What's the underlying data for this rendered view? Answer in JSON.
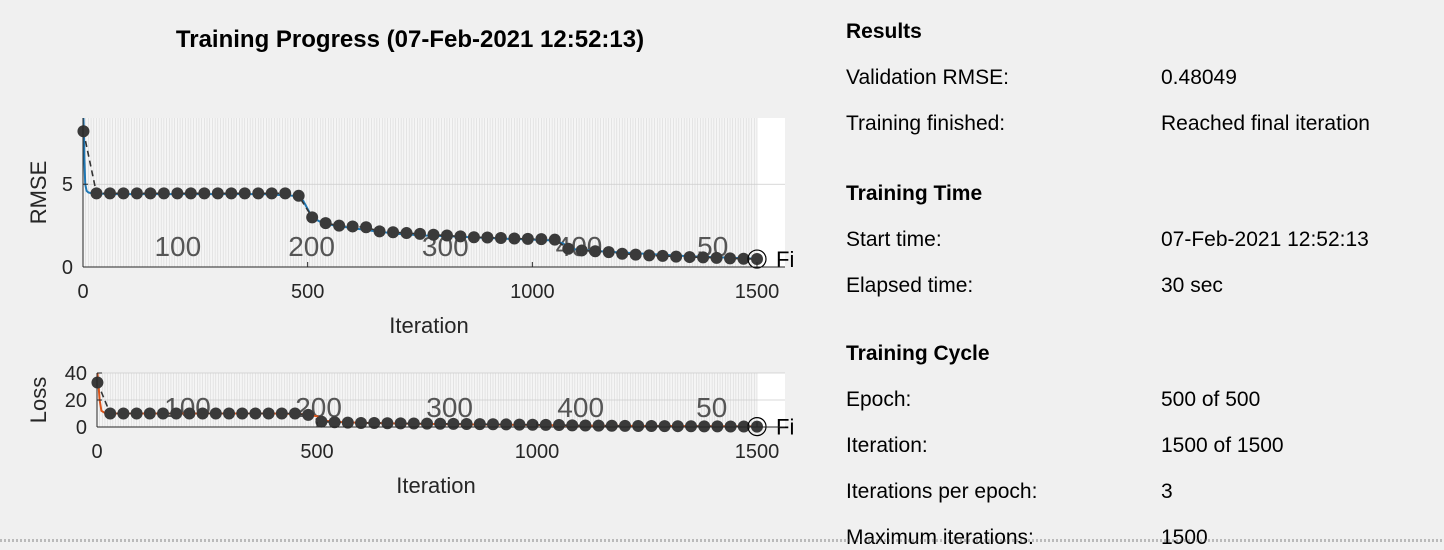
{
  "title": "Training Progress (07-Feb-2021 12:52:13)",
  "results": {
    "heading": "Results",
    "validation_rmse_label": "Validation RMSE:",
    "validation_rmse_value": "0.48049",
    "training_finished_label": "Training finished:",
    "training_finished_value": "Reached final iteration"
  },
  "training_time": {
    "heading": "Training Time",
    "start_label": "Start time:",
    "start_value": "07-Feb-2021 12:52:13",
    "elapsed_label": "Elapsed time:",
    "elapsed_value": "30 sec"
  },
  "training_cycle": {
    "heading": "Training Cycle",
    "epoch_label": "Epoch:",
    "epoch_value": "500 of 500",
    "iteration_label": "Iteration:",
    "iteration_value": "1500 of 1500",
    "ipe_label": "Iterations per epoch:",
    "ipe_value": "3",
    "maxiter_label": "Maximum iterations:",
    "maxiter_value": "1500"
  },
  "chart_data": [
    {
      "type": "line",
      "ylabel": "RMSE",
      "xlabel": "Iteration",
      "xlim": [
        0,
        1500
      ],
      "ylim": [
        0,
        9
      ],
      "xticks": [
        0,
        500,
        1000,
        1500
      ],
      "yticks": [
        0,
        5
      ],
      "epoch_labels": [
        "100",
        "200",
        "300",
        "400",
        "50"
      ],
      "final_marker_label": "Fi",
      "series": [
        {
          "color": "#1f77b4",
          "x": [
            1,
            2,
            3,
            5,
            8,
            12,
            20,
            30,
            60,
            120,
            200,
            300,
            400,
            470,
            490,
            510,
            530,
            560,
            600,
            640,
            700,
            760,
            820,
            900,
            1000,
            1050,
            1070,
            1080,
            1150,
            1250,
            1350,
            1450,
            1500
          ],
          "y": [
            9.0,
            8.2,
            6.5,
            5.0,
            4.6,
            4.5,
            4.45,
            4.45,
            4.4,
            4.4,
            4.4,
            4.4,
            4.4,
            4.3,
            4.0,
            3.0,
            2.7,
            2.5,
            2.35,
            2.2,
            2.0,
            1.9,
            1.85,
            1.75,
            1.65,
            1.6,
            1.4,
            1.1,
            0.95,
            0.8,
            0.65,
            0.55,
            0.5
          ]
        }
      ],
      "validation_points": {
        "x": [
          1,
          30,
          60,
          90,
          120,
          150,
          180,
          210,
          240,
          270,
          300,
          330,
          360,
          390,
          420,
          450,
          480,
          510,
          540,
          570,
          600,
          630,
          660,
          690,
          720,
          750,
          780,
          810,
          840,
          870,
          900,
          930,
          960,
          990,
          1020,
          1050,
          1080,
          1110,
          1140,
          1170,
          1200,
          1230,
          1260,
          1290,
          1320,
          1350,
          1380,
          1410,
          1440,
          1470,
          1500
        ],
        "y": [
          8.2,
          4.45,
          4.45,
          4.45,
          4.45,
          4.45,
          4.45,
          4.45,
          4.45,
          4.45,
          4.45,
          4.45,
          4.45,
          4.45,
          4.45,
          4.45,
          4.3,
          3.0,
          2.65,
          2.5,
          2.45,
          2.4,
          2.15,
          2.1,
          2.05,
          2.0,
          1.95,
          1.9,
          1.85,
          1.8,
          1.78,
          1.75,
          1.72,
          1.7,
          1.68,
          1.65,
          1.1,
          1.0,
          0.95,
          0.9,
          0.8,
          0.75,
          0.7,
          0.67,
          0.63,
          0.6,
          0.58,
          0.55,
          0.52,
          0.5,
          0.48
        ]
      },
      "final_value": 0.48
    },
    {
      "type": "line",
      "ylabel": "Loss",
      "xlabel": "Iteration",
      "xlim": [
        0,
        1500
      ],
      "ylim": [
        0,
        40
      ],
      "xticks": [
        0,
        500,
        1000,
        1500
      ],
      "yticks": [
        0,
        20,
        40
      ],
      "epoch_labels": [
        "100",
        "200",
        "300",
        "400",
        "50"
      ],
      "final_marker_label": "Fi",
      "series": [
        {
          "color": "#d95319",
          "x": [
            1,
            3,
            6,
            10,
            20,
            40,
            100,
            200,
            300,
            400,
            470,
            500,
            520,
            560,
            620,
            700,
            800,
            1000,
            1100,
            1300,
            1500
          ],
          "y": [
            40,
            33,
            20,
            12,
            10,
            10,
            10,
            10,
            10,
            10,
            9.5,
            8,
            4.5,
            3.5,
            3,
            2.5,
            2,
            1.5,
            1,
            0.7,
            0.5
          ]
        }
      ],
      "validation_points": {
        "x": [
          1,
          30,
          60,
          90,
          120,
          150,
          180,
          210,
          240,
          270,
          300,
          330,
          360,
          390,
          420,
          450,
          480,
          510,
          540,
          570,
          600,
          630,
          660,
          690,
          720,
          750,
          780,
          810,
          840,
          870,
          900,
          930,
          960,
          990,
          1020,
          1050,
          1080,
          1110,
          1140,
          1170,
          1200,
          1230,
          1260,
          1290,
          1320,
          1350,
          1380,
          1410,
          1440,
          1470,
          1500
        ],
        "y": [
          33,
          10,
          10,
          10,
          10,
          10,
          10,
          10,
          10,
          10,
          10,
          10,
          10,
          10,
          10,
          10,
          9,
          4,
          3.5,
          3.2,
          3,
          3,
          2.8,
          2.7,
          2.6,
          2.5,
          2.4,
          2.3,
          2.2,
          2.1,
          2,
          1.9,
          1.8,
          1.7,
          1.6,
          1.5,
          1.2,
          1.1,
          1,
          0.9,
          0.8,
          0.75,
          0.7,
          0.65,
          0.6,
          0.55,
          0.5,
          0.45,
          0.4,
          0.35,
          0.3
        ]
      },
      "final_value": 0.3
    }
  ]
}
